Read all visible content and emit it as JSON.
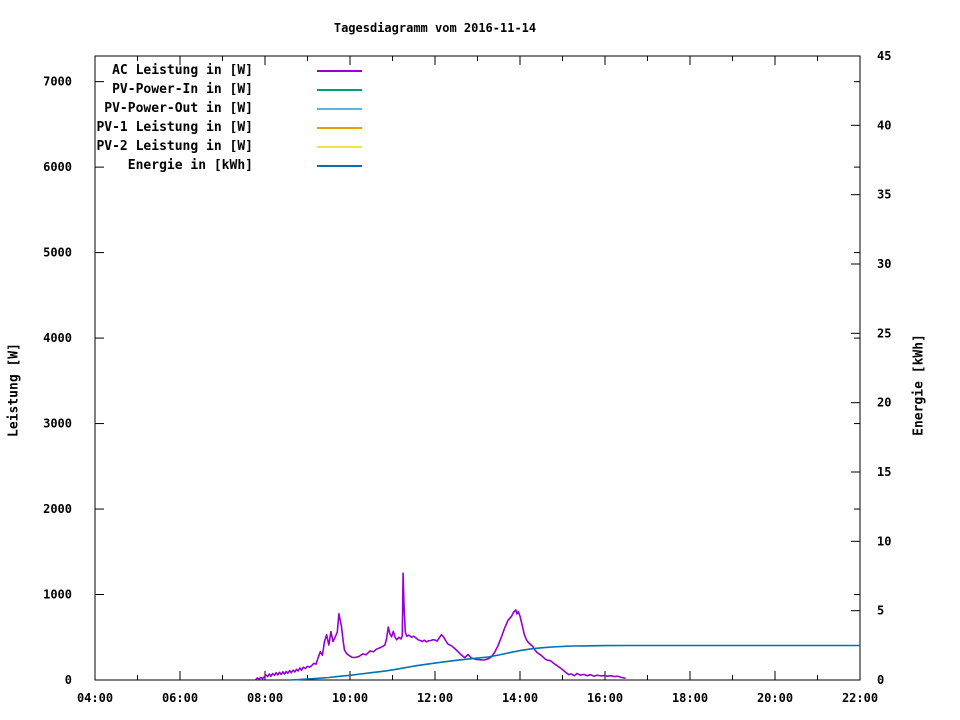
{
  "title": "Tagesdiagramm vom 2016-11-14",
  "chart_data": {
    "type": "line",
    "title": "Tagesdiagramm vom 2016-11-14",
    "x_axis": {
      "unit": "time",
      "range_hours": [
        4,
        22
      ],
      "major_tick_hours": [
        4,
        6,
        8,
        10,
        12,
        14,
        16,
        18,
        20,
        22
      ],
      "major_tick_labels": [
        "04:00",
        "06:00",
        "08:00",
        "10:00",
        "12:00",
        "14:00",
        "16:00",
        "18:00",
        "20:00",
        "22:00"
      ],
      "minor_tick_hours": [
        5,
        7,
        9,
        11,
        13,
        15,
        17,
        19,
        21
      ]
    },
    "y_axis": {
      "label": "Leistung [W]",
      "range": [
        0,
        7300
      ],
      "ticks": [
        0,
        1000,
        2000,
        3000,
        4000,
        5000,
        6000,
        7000
      ],
      "tick_labels": [
        "0",
        "1000",
        "2000",
        "3000",
        "4000",
        "5000",
        "6000",
        "7000"
      ]
    },
    "y2_axis": {
      "label": "Energie [kWh]",
      "range": [
        0,
        45
      ],
      "ticks": [
        0,
        5,
        10,
        15,
        20,
        25,
        30,
        35,
        40,
        45
      ],
      "tick_labels": [
        "0",
        "5",
        "10",
        "15",
        "20",
        "25",
        "30",
        "35",
        "40",
        "45"
      ]
    },
    "grid": false,
    "legend_position": "top-left-inside",
    "legend": [
      {
        "label": "AC Leistung in [W]",
        "color": "#9400D3"
      },
      {
        "label": "PV-Power-In in [W]",
        "color": "#009E73"
      },
      {
        "label": "PV-Power-Out in [W]",
        "color": "#56B4E9"
      },
      {
        "label": "PV-1 Leistung in [W]",
        "color": "#E69F00"
      },
      {
        "label": "PV-2 Leistung in [W]",
        "color": "#F0E442"
      },
      {
        "label": "Energie in [kWh]",
        "color": "#0072B2"
      }
    ],
    "series": [
      {
        "name": "AC Leistung in [W]",
        "axis": "y",
        "color": "#9400D3",
        "points": [
          [
            7.78,
            5
          ],
          [
            7.82,
            25
          ],
          [
            7.86,
            12
          ],
          [
            7.9,
            30
          ],
          [
            7.94,
            15
          ],
          [
            7.98,
            35
          ],
          [
            8.02,
            60
          ],
          [
            8.06,
            40
          ],
          [
            8.1,
            70
          ],
          [
            8.14,
            45
          ],
          [
            8.18,
            75
          ],
          [
            8.22,
            55
          ],
          [
            8.26,
            85
          ],
          [
            8.3,
            60
          ],
          [
            8.34,
            90
          ],
          [
            8.38,
            65
          ],
          [
            8.42,
            95
          ],
          [
            8.46,
            70
          ],
          [
            8.5,
            100
          ],
          [
            8.54,
            80
          ],
          [
            8.58,
            110
          ],
          [
            8.62,
            85
          ],
          [
            8.66,
            115
          ],
          [
            8.7,
            95
          ],
          [
            8.74,
            125
          ],
          [
            8.78,
            105
          ],
          [
            8.82,
            140
          ],
          [
            8.86,
            115
          ],
          [
            8.9,
            150
          ],
          [
            8.95,
            135
          ],
          [
            9.0,
            160
          ],
          [
            9.05,
            150
          ],
          [
            9.1,
            170
          ],
          [
            9.15,
            195
          ],
          [
            9.2,
            185
          ],
          [
            9.25,
            260
          ],
          [
            9.3,
            330
          ],
          [
            9.35,
            290
          ],
          [
            9.4,
            450
          ],
          [
            9.45,
            530
          ],
          [
            9.5,
            410
          ],
          [
            9.55,
            565
          ],
          [
            9.6,
            450
          ],
          [
            9.65,
            500
          ],
          [
            9.7,
            560
          ],
          [
            9.74,
            775
          ],
          [
            9.77,
            700
          ],
          [
            9.8,
            625
          ],
          [
            9.84,
            450
          ],
          [
            9.87,
            350
          ],
          [
            9.92,
            310
          ],
          [
            9.96,
            293
          ],
          [
            10.0,
            280
          ],
          [
            10.05,
            265
          ],
          [
            10.1,
            262
          ],
          [
            10.2,
            272
          ],
          [
            10.3,
            305
          ],
          [
            10.38,
            295
          ],
          [
            10.47,
            340
          ],
          [
            10.55,
            330
          ],
          [
            10.62,
            360
          ],
          [
            10.7,
            375
          ],
          [
            10.78,
            395
          ],
          [
            10.82,
            410
          ],
          [
            10.86,
            480
          ],
          [
            10.9,
            620
          ],
          [
            10.94,
            540
          ],
          [
            10.98,
            505
          ],
          [
            11.02,
            570
          ],
          [
            11.06,
            500
          ],
          [
            11.1,
            470
          ],
          [
            11.15,
            500
          ],
          [
            11.2,
            480
          ],
          [
            11.23,
            520
          ],
          [
            11.25,
            1249
          ],
          [
            11.27,
            870
          ],
          [
            11.3,
            560
          ],
          [
            11.34,
            510
          ],
          [
            11.38,
            525
          ],
          [
            11.45,
            500
          ],
          [
            11.5,
            512
          ],
          [
            11.55,
            492
          ],
          [
            11.6,
            472
          ],
          [
            11.65,
            462
          ],
          [
            11.7,
            452
          ],
          [
            11.75,
            466
          ],
          [
            11.8,
            446
          ],
          [
            11.85,
            458
          ],
          [
            11.9,
            462
          ],
          [
            11.95,
            472
          ],
          [
            12.0,
            468
          ],
          [
            12.05,
            455
          ],
          [
            12.1,
            492
          ],
          [
            12.15,
            530
          ],
          [
            12.2,
            505
          ],
          [
            12.25,
            462
          ],
          [
            12.3,
            422
          ],
          [
            12.4,
            396
          ],
          [
            12.5,
            352
          ],
          [
            12.6,
            302
          ],
          [
            12.7,
            262
          ],
          [
            12.78,
            298
          ],
          [
            12.85,
            258
          ],
          [
            12.95,
            242
          ],
          [
            13.05,
            238
          ],
          [
            13.15,
            234
          ],
          [
            13.25,
            248
          ],
          [
            13.32,
            268
          ],
          [
            13.4,
            320
          ],
          [
            13.48,
            400
          ],
          [
            13.56,
            500
          ],
          [
            13.64,
            610
          ],
          [
            13.72,
            700
          ],
          [
            13.8,
            745
          ],
          [
            13.85,
            792
          ],
          [
            13.9,
            820
          ],
          [
            13.93,
            772
          ],
          [
            13.96,
            800
          ],
          [
            14.0,
            748
          ],
          [
            14.05,
            645
          ],
          [
            14.1,
            532
          ],
          [
            14.15,
            472
          ],
          [
            14.2,
            438
          ],
          [
            14.3,
            392
          ],
          [
            14.35,
            352
          ],
          [
            14.4,
            322
          ],
          [
            14.5,
            288
          ],
          [
            14.6,
            242
          ],
          [
            14.65,
            232
          ],
          [
            14.72,
            226
          ],
          [
            14.8,
            192
          ],
          [
            14.9,
            158
          ],
          [
            15.0,
            122
          ],
          [
            15.08,
            88
          ],
          [
            15.15,
            62
          ],
          [
            15.2,
            72
          ],
          [
            15.28,
            50
          ],
          [
            15.34,
            76
          ],
          [
            15.42,
            56
          ],
          [
            15.5,
            66
          ],
          [
            15.58,
            50
          ],
          [
            15.66,
            62
          ],
          [
            15.74,
            46
          ],
          [
            15.82,
            56
          ],
          [
            15.9,
            48
          ],
          [
            15.98,
            52
          ],
          [
            16.06,
            44
          ],
          [
            16.14,
            50
          ],
          [
            16.22,
            40
          ],
          [
            16.3,
            44
          ],
          [
            16.38,
            30
          ],
          [
            16.47,
            22
          ]
        ]
      },
      {
        "name": "PV-Power-In in [W]",
        "axis": "y",
        "color": "#009E73",
        "points": []
      },
      {
        "name": "PV-Power-Out in [W]",
        "axis": "y",
        "color": "#56B4E9",
        "points": []
      },
      {
        "name": "PV-1 Leistung in [W]",
        "axis": "y",
        "color": "#E69F00",
        "points": []
      },
      {
        "name": "PV-2 Leistung in [W]",
        "axis": "y",
        "color": "#F0E442",
        "points": []
      },
      {
        "name": "Energie in [kWh]",
        "axis": "y2",
        "color": "#0072B2",
        "points": [
          [
            8.58,
            0.0
          ],
          [
            8.8,
            0.03
          ],
          [
            9.0,
            0.07
          ],
          [
            9.25,
            0.12
          ],
          [
            9.5,
            0.18
          ],
          [
            9.75,
            0.27
          ],
          [
            10.0,
            0.34
          ],
          [
            10.25,
            0.43
          ],
          [
            10.5,
            0.53
          ],
          [
            10.75,
            0.62
          ],
          [
            11.0,
            0.73
          ],
          [
            11.25,
            0.86
          ],
          [
            11.5,
            1.0
          ],
          [
            11.75,
            1.11
          ],
          [
            12.0,
            1.22
          ],
          [
            12.25,
            1.32
          ],
          [
            12.5,
            1.42
          ],
          [
            12.75,
            1.5
          ],
          [
            13.0,
            1.58
          ],
          [
            13.25,
            1.66
          ],
          [
            13.5,
            1.8
          ],
          [
            13.75,
            1.97
          ],
          [
            14.0,
            2.12
          ],
          [
            14.25,
            2.24
          ],
          [
            14.5,
            2.32
          ],
          [
            14.75,
            2.38
          ],
          [
            15.0,
            2.42
          ],
          [
            15.25,
            2.45
          ],
          [
            15.5,
            2.46
          ],
          [
            16.0,
            2.48
          ],
          [
            16.5,
            2.49
          ],
          [
            17.0,
            2.49
          ],
          [
            18.0,
            2.49
          ],
          [
            19.0,
            2.49
          ],
          [
            20.0,
            2.49
          ],
          [
            21.0,
            2.49
          ],
          [
            22.0,
            2.49
          ]
        ]
      }
    ]
  }
}
